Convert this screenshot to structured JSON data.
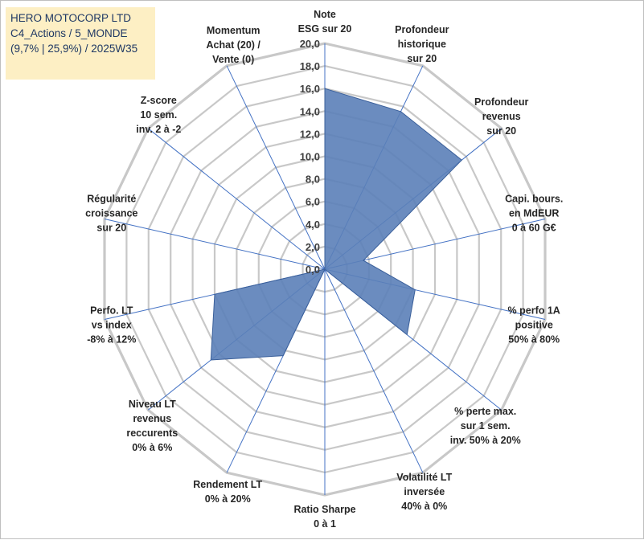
{
  "title_lines": [
    "HERO MOTOCORP LTD",
    "C4_Actions / 5_MONDE",
    "(9,7% | 25,9%) / 2025W35"
  ],
  "chart_data": {
    "type": "radar",
    "rmin": 0,
    "rmax": 20,
    "tick_step": 2,
    "tick_labels": [
      "0,0",
      "2,0",
      "4,0",
      "6,0",
      "8,0",
      "10,0",
      "12,0",
      "14,0",
      "16,0",
      "18,0",
      "20,0"
    ],
    "grid": true,
    "legend": "none",
    "axes": [
      [
        "Note",
        "ESG sur 20"
      ],
      [
        "Profondeur",
        "historique",
        "sur 20"
      ],
      [
        "Profondeur",
        "revenus",
        "sur 20"
      ],
      [
        "Capi. bours.",
        "en MdEUR",
        "0 à 60 G€"
      ],
      [
        "% perfo 1A",
        "positive",
        "50% à 80%"
      ],
      [
        "% perte max.",
        "sur 1 sem.",
        "inv. 50% à 20%"
      ],
      [
        "Volatilité LT",
        "inversée",
        "40% à 0%"
      ],
      [
        "Ratio Sharpe",
        "0 à 1"
      ],
      [
        "Rendement LT",
        "0% à 20%"
      ],
      [
        "Niveau LT",
        "revenus",
        "reccurents",
        "0% à 6%"
      ],
      [
        "Perfo. LT",
        "vs index",
        "-8% à 12%"
      ],
      [
        "Régularité",
        "croissance",
        "sur 20"
      ],
      [
        "Z-score",
        "10 sem.",
        "inv. 2 à -2"
      ],
      [
        "Momentum",
        "Achat (20) /",
        "Vente (0)"
      ]
    ],
    "values": [
      16.0,
      15.5,
      15.5,
      3.5,
      8.2,
      9.3,
      0.0,
      0.0,
      8.5,
      12.9,
      10.0,
      0.0,
      0.0,
      0.0
    ],
    "colors": {
      "fill": "#5b7fb8",
      "stroke": "#3a5f9a",
      "grid": "#c8c8c8",
      "spoke": "#4472c4"
    }
  }
}
